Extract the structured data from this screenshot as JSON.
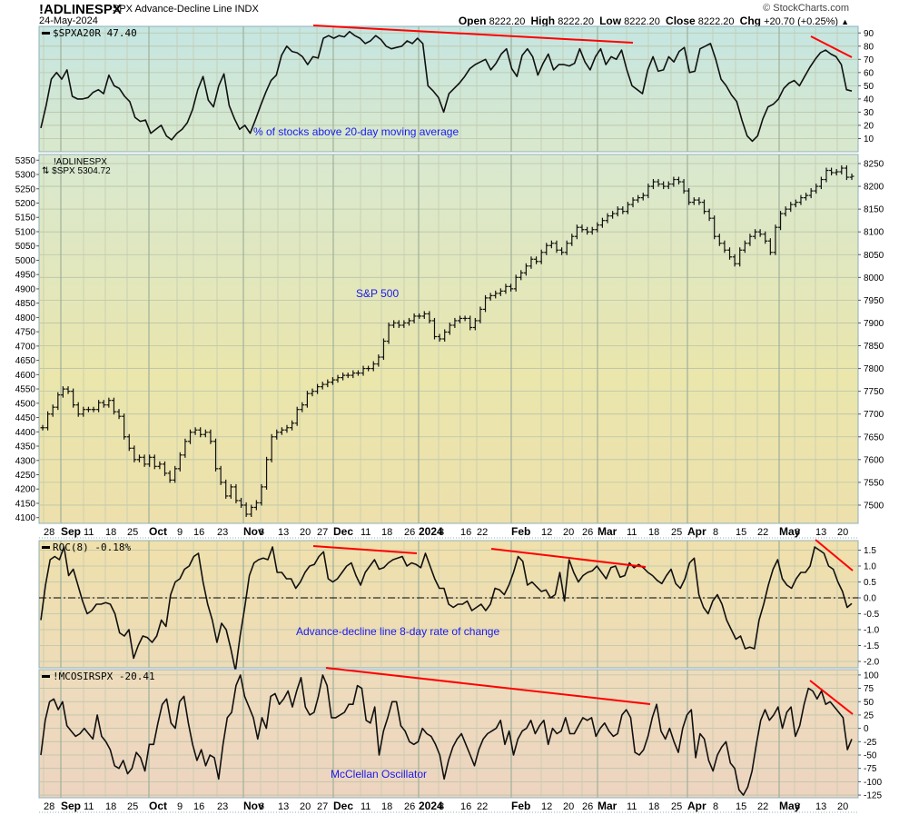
{
  "header": {
    "symbol": "!ADLINESPX",
    "name": "SPX Advance-Decline Line",
    "exchange": "INDX",
    "date": "24-May-2024",
    "copyright": "© StockCharts.com",
    "open_label": "Open",
    "open": "8222.20",
    "high_label": "High",
    "high": "8222.20",
    "low_label": "Low",
    "low": "8222.20",
    "close_label": "Close",
    "close": "8222.20",
    "chg_label": "Chg",
    "chg": "+20.70 (+0.25%)",
    "chg_arrow": "▲"
  },
  "panels": {
    "top": {
      "legend": "$SPXA20R 47.40",
      "note": "% of stocks above 20-day moving average"
    },
    "main": {
      "legend1": "!ADLINESPX",
      "legend2": "$SPX 5304.72",
      "note": "S&P 500"
    },
    "roc": {
      "legend": "ROC(8) -0.18%",
      "note": "Advance-decline line 8-day rate of change"
    },
    "mco": {
      "legend": "!MCOSIRSPX -20.41",
      "note": "McClellan Oscillator"
    }
  },
  "x_axis": [
    "28",
    "Sep",
    "11",
    "18",
    "25",
    "Oct",
    "9",
    "16",
    "23",
    "Nov",
    "6",
    "13",
    "20",
    "27",
    "Dec",
    "11",
    "18",
    "26",
    "2024",
    "8",
    "16",
    "22",
    "Feb",
    "12",
    "20",
    "26",
    "Mar",
    "11",
    "18",
    "25",
    "Apr",
    "8",
    "15",
    "22",
    "May",
    "6",
    "13",
    "20"
  ],
  "colors": {
    "trendline": "#ff0000",
    "note_text": "#1a1aee",
    "series": "#000000"
  },
  "chart_data": [
    {
      "type": "line",
      "title": "$SPXA20R - % of stocks above 20-day moving average",
      "ylim": [
        0,
        95
      ],
      "yticks": [
        10,
        20,
        30,
        40,
        50,
        60,
        70,
        80,
        90
      ],
      "last_value": 47.4,
      "values": [
        18,
        35,
        55,
        60,
        55,
        62,
        42,
        40,
        40,
        41,
        45,
        47,
        44,
        58,
        50,
        48,
        42,
        38,
        26,
        23,
        24,
        14,
        17,
        20,
        12,
        9,
        14,
        17,
        22,
        32,
        47,
        57,
        39,
        34,
        50,
        59,
        35,
        25,
        17,
        20,
        14,
        24,
        35,
        45,
        54,
        58,
        73,
        80,
        76,
        75,
        72,
        66,
        72,
        71,
        86,
        88,
        86,
        88,
        87,
        91,
        88,
        86,
        82,
        84,
        88,
        85,
        80,
        78,
        79,
        80,
        84,
        82,
        86,
        82,
        50,
        46,
        41,
        30,
        44,
        48,
        52,
        57,
        63,
        66,
        68,
        70,
        62,
        67,
        74,
        78,
        63,
        57,
        73,
        78,
        72,
        58,
        67,
        74,
        62,
        66,
        66,
        65,
        67,
        78,
        68,
        62,
        72,
        78,
        66,
        72,
        70,
        77,
        62,
        50,
        47,
        44,
        62,
        72,
        61,
        62,
        72,
        68,
        76,
        79,
        60,
        61,
        78,
        80,
        82,
        70,
        55,
        50,
        43,
        38,
        24,
        12,
        8,
        12,
        25,
        34,
        36,
        40,
        48,
        52,
        54,
        50,
        57,
        64,
        70,
        75,
        77,
        74,
        72,
        66,
        47,
        46
      ],
      "trendlines": [
        {
          "from": [
            345,
            28
          ],
          "to": [
            697,
            47
          ]
        },
        {
          "from": [
            893,
            40
          ],
          "to": [
            938,
            63
          ]
        }
      ]
    },
    {
      "type": "line",
      "title": "!ADLINESPX vs $SPX",
      "series": [
        {
          "name": "$SPX",
          "axis": "left",
          "ylim": [
            4080,
            5370
          ],
          "yticks": [
            4100,
            4150,
            4200,
            4250,
            4300,
            4350,
            4400,
            4450,
            4500,
            4550,
            4600,
            4650,
            4700,
            4750,
            4800,
            4850,
            4900,
            4950,
            5000,
            5050,
            5100,
            5150,
            5200,
            5250,
            5300,
            5350
          ],
          "last_value": 5304.72
        },
        {
          "name": "!ADLINESPX",
          "axis": "right",
          "ylim": [
            7460,
            8270
          ],
          "yticks": [
            7500,
            7550,
            7600,
            7650,
            7700,
            7750,
            7800,
            7850,
            7900,
            7950,
            8000,
            8050,
            8100,
            8150,
            8200,
            8250
          ],
          "last_value": 8222.2,
          "values": [
            7670,
            7700,
            7715,
            7742,
            7755,
            7750,
            7720,
            7700,
            7710,
            7710,
            7710,
            7725,
            7720,
            7730,
            7705,
            7695,
            7650,
            7625,
            7600,
            7605,
            7590,
            7605,
            7585,
            7590,
            7570,
            7555,
            7580,
            7610,
            7640,
            7660,
            7665,
            7655,
            7660,
            7640,
            7580,
            7550,
            7520,
            7540,
            7510,
            7500,
            7480,
            7495,
            7505,
            7540,
            7600,
            7650,
            7660,
            7665,
            7670,
            7680,
            7710,
            7720,
            7745,
            7750,
            7760,
            7765,
            7770,
            7775,
            7780,
            7785,
            7785,
            7790,
            7790,
            7800,
            7800,
            7810,
            7825,
            7860,
            7895,
            7900,
            7895,
            7900,
            7905,
            7915,
            7915,
            7920,
            7905,
            7870,
            7865,
            7880,
            7895,
            7905,
            7910,
            7910,
            7890,
            7905,
            7930,
            7955,
            7960,
            7965,
            7970,
            7980,
            7975,
            8000,
            8010,
            8025,
            8040,
            8035,
            8055,
            8070,
            8075,
            8060,
            8055,
            8075,
            8090,
            8110,
            8105,
            8100,
            8105,
            8115,
            8125,
            8135,
            8140,
            8150,
            8145,
            8160,
            8170,
            8175,
            8180,
            8200,
            8210,
            8205,
            8200,
            8205,
            8215,
            8210,
            8190,
            8165,
            8170,
            8165,
            8145,
            8130,
            8090,
            8075,
            8060,
            8045,
            8030,
            8060,
            8075,
            8090,
            8100,
            8095,
            8080,
            8055,
            8110,
            8140,
            8150,
            8160,
            8165,
            8175,
            8180,
            8190,
            8200,
            8215,
            8235,
            8230,
            8232,
            8240,
            8220,
            8222
          ]
        }
      ]
    },
    {
      "type": "line",
      "title": "ROC(8) - Advance-decline line 8-day rate of change",
      "ylim": [
        -2.2,
        1.8
      ],
      "yticks": [
        -2.0,
        -1.5,
        -1.0,
        -0.5,
        0.0,
        0.5,
        1.0,
        1.5
      ],
      "last_value": -0.18,
      "values": [
        -0.7,
        0.4,
        1.2,
        1.3,
        1.2,
        1.6,
        0.7,
        0.9,
        0.4,
        -0.1,
        -0.5,
        -0.4,
        -0.2,
        -0.2,
        -0.15,
        -0.2,
        -0.5,
        -1.1,
        -1.2,
        -1.0,
        -1.9,
        -1.5,
        -1.2,
        -1.25,
        -1.4,
        -1.2,
        -0.7,
        -0.9,
        0.1,
        0.5,
        0.6,
        0.9,
        1.0,
        1.3,
        1.4,
        0.5,
        -0.2,
        -0.7,
        -1.4,
        -0.8,
        -1.0,
        -1.6,
        -2.3,
        -1.2,
        -0.3,
        0.7,
        1.1,
        1.2,
        1.25,
        1.2,
        1.6,
        0.8,
        0.8,
        0.6,
        0.6,
        0.3,
        0.5,
        0.8,
        1.0,
        1.05,
        1.3,
        1.45,
        0.6,
        0.5,
        0.6,
        0.8,
        1.0,
        1.1,
        0.7,
        0.4,
        0.8,
        1.0,
        1.2,
        0.9,
        0.95,
        1.1,
        1.2,
        1.25,
        1.3,
        1.0,
        1.1,
        1.05,
        0.95,
        1.4,
        1.0,
        0.6,
        0.3,
        0.3,
        -0.2,
        -0.3,
        -0.2,
        -0.2,
        -0.1,
        -0.4,
        -0.3,
        -0.2,
        -0.4,
        -0.2,
        0.3,
        0.25,
        0.1,
        0.4,
        0.8,
        1.3,
        1.15,
        0.4,
        0.5,
        0.35,
        0.2,
        0.25,
        0.0,
        0.1,
        0.8,
        -0.1,
        1.2,
        0.8,
        0.5,
        0.7,
        0.8,
        0.85,
        1.0,
        0.8,
        0.6,
        0.95,
        1.0,
        0.65,
        0.7,
        1.1,
        0.95,
        1.05,
        0.95,
        0.8,
        0.7,
        0.55,
        0.45,
        0.7,
        0.9,
        0.45,
        0.3,
        0.6,
        1.1,
        1.25,
        0.1,
        -0.3,
        -0.5,
        -0.1,
        0.1,
        -0.2,
        -0.7,
        -1.0,
        -1.3,
        -1.2,
        -1.6,
        -1.55,
        -1.6,
        -0.7,
        -0.2,
        0.4,
        0.9,
        1.2,
        0.6,
        0.4,
        0.3,
        0.6,
        0.8,
        0.8,
        1.0,
        1.6,
        1.5,
        1.4,
        1.0,
        0.9,
        0.5,
        0.2,
        -0.3,
        -0.18
      ],
      "zero_line": true,
      "trendlines": [
        {
          "from": [
            345,
            601
          ],
          "to": [
            459,
            609
          ]
        },
        {
          "from": [
            541,
            604
          ],
          "to": [
            711,
            624
          ]
        },
        {
          "from": [
            898,
            594
          ],
          "to": [
            939,
            628
          ]
        }
      ]
    },
    {
      "type": "line",
      "title": "!MCOSIRSPX - McClellan Oscillator",
      "ylim": [
        -130,
        110
      ],
      "yticks": [
        -125,
        -100,
        -75,
        -50,
        -25,
        0,
        25,
        50,
        75,
        100
      ],
      "last_value": -20.41,
      "values": [
        -50,
        15,
        50,
        55,
        35,
        50,
        5,
        -5,
        -15,
        -10,
        0,
        -10,
        -20,
        25,
        -15,
        -25,
        -40,
        -70,
        -75,
        -60,
        -85,
        -75,
        -45,
        -55,
        -80,
        -30,
        -30,
        10,
        45,
        55,
        10,
        0,
        50,
        60,
        10,
        -30,
        -60,
        -40,
        -70,
        -50,
        -55,
        -95,
        -30,
        20,
        30,
        80,
        100,
        60,
        40,
        20,
        -20,
        20,
        0,
        60,
        65,
        45,
        55,
        70,
        40,
        70,
        95,
        40,
        25,
        30,
        60,
        100,
        80,
        20,
        20,
        25,
        30,
        45,
        45,
        80,
        75,
        15,
        10,
        40,
        -50,
        -5,
        20,
        50,
        50,
        5,
        -5,
        -25,
        -30,
        -25,
        0,
        -10,
        -15,
        -30,
        -50,
        -95,
        -60,
        -35,
        -20,
        -10,
        -30,
        -50,
        -70,
        -40,
        -20,
        -10,
        -5,
        0,
        15,
        -30,
        -5,
        -50,
        -20,
        -5,
        0,
        15,
        -10,
        5,
        15,
        -30,
        0,
        -10,
        -5,
        20,
        -10,
        -10,
        5,
        20,
        15,
        20,
        -15,
        0,
        10,
        -5,
        -15,
        -10,
        25,
        35,
        20,
        -45,
        -50,
        -40,
        -15,
        20,
        45,
        -5,
        -20,
        0,
        -25,
        -45,
        0,
        25,
        35,
        -55,
        -10,
        -20,
        -60,
        -80,
        -50,
        -35,
        -25,
        -65,
        -75,
        -115,
        -125,
        -110,
        -80,
        -30,
        15,
        35,
        15,
        25,
        40,
        0,
        30,
        40,
        -15,
        5,
        45,
        75,
        70,
        55,
        70,
        45,
        50,
        40,
        30,
        20,
        -40,
        -20
      ],
      "trendlines": [
        {
          "from": [
            359,
            735
          ],
          "to": [
            716,
            775
          ]
        },
        {
          "from": [
            892,
            749
          ],
          "to": [
            939,
            786
          ]
        }
      ]
    }
  ]
}
